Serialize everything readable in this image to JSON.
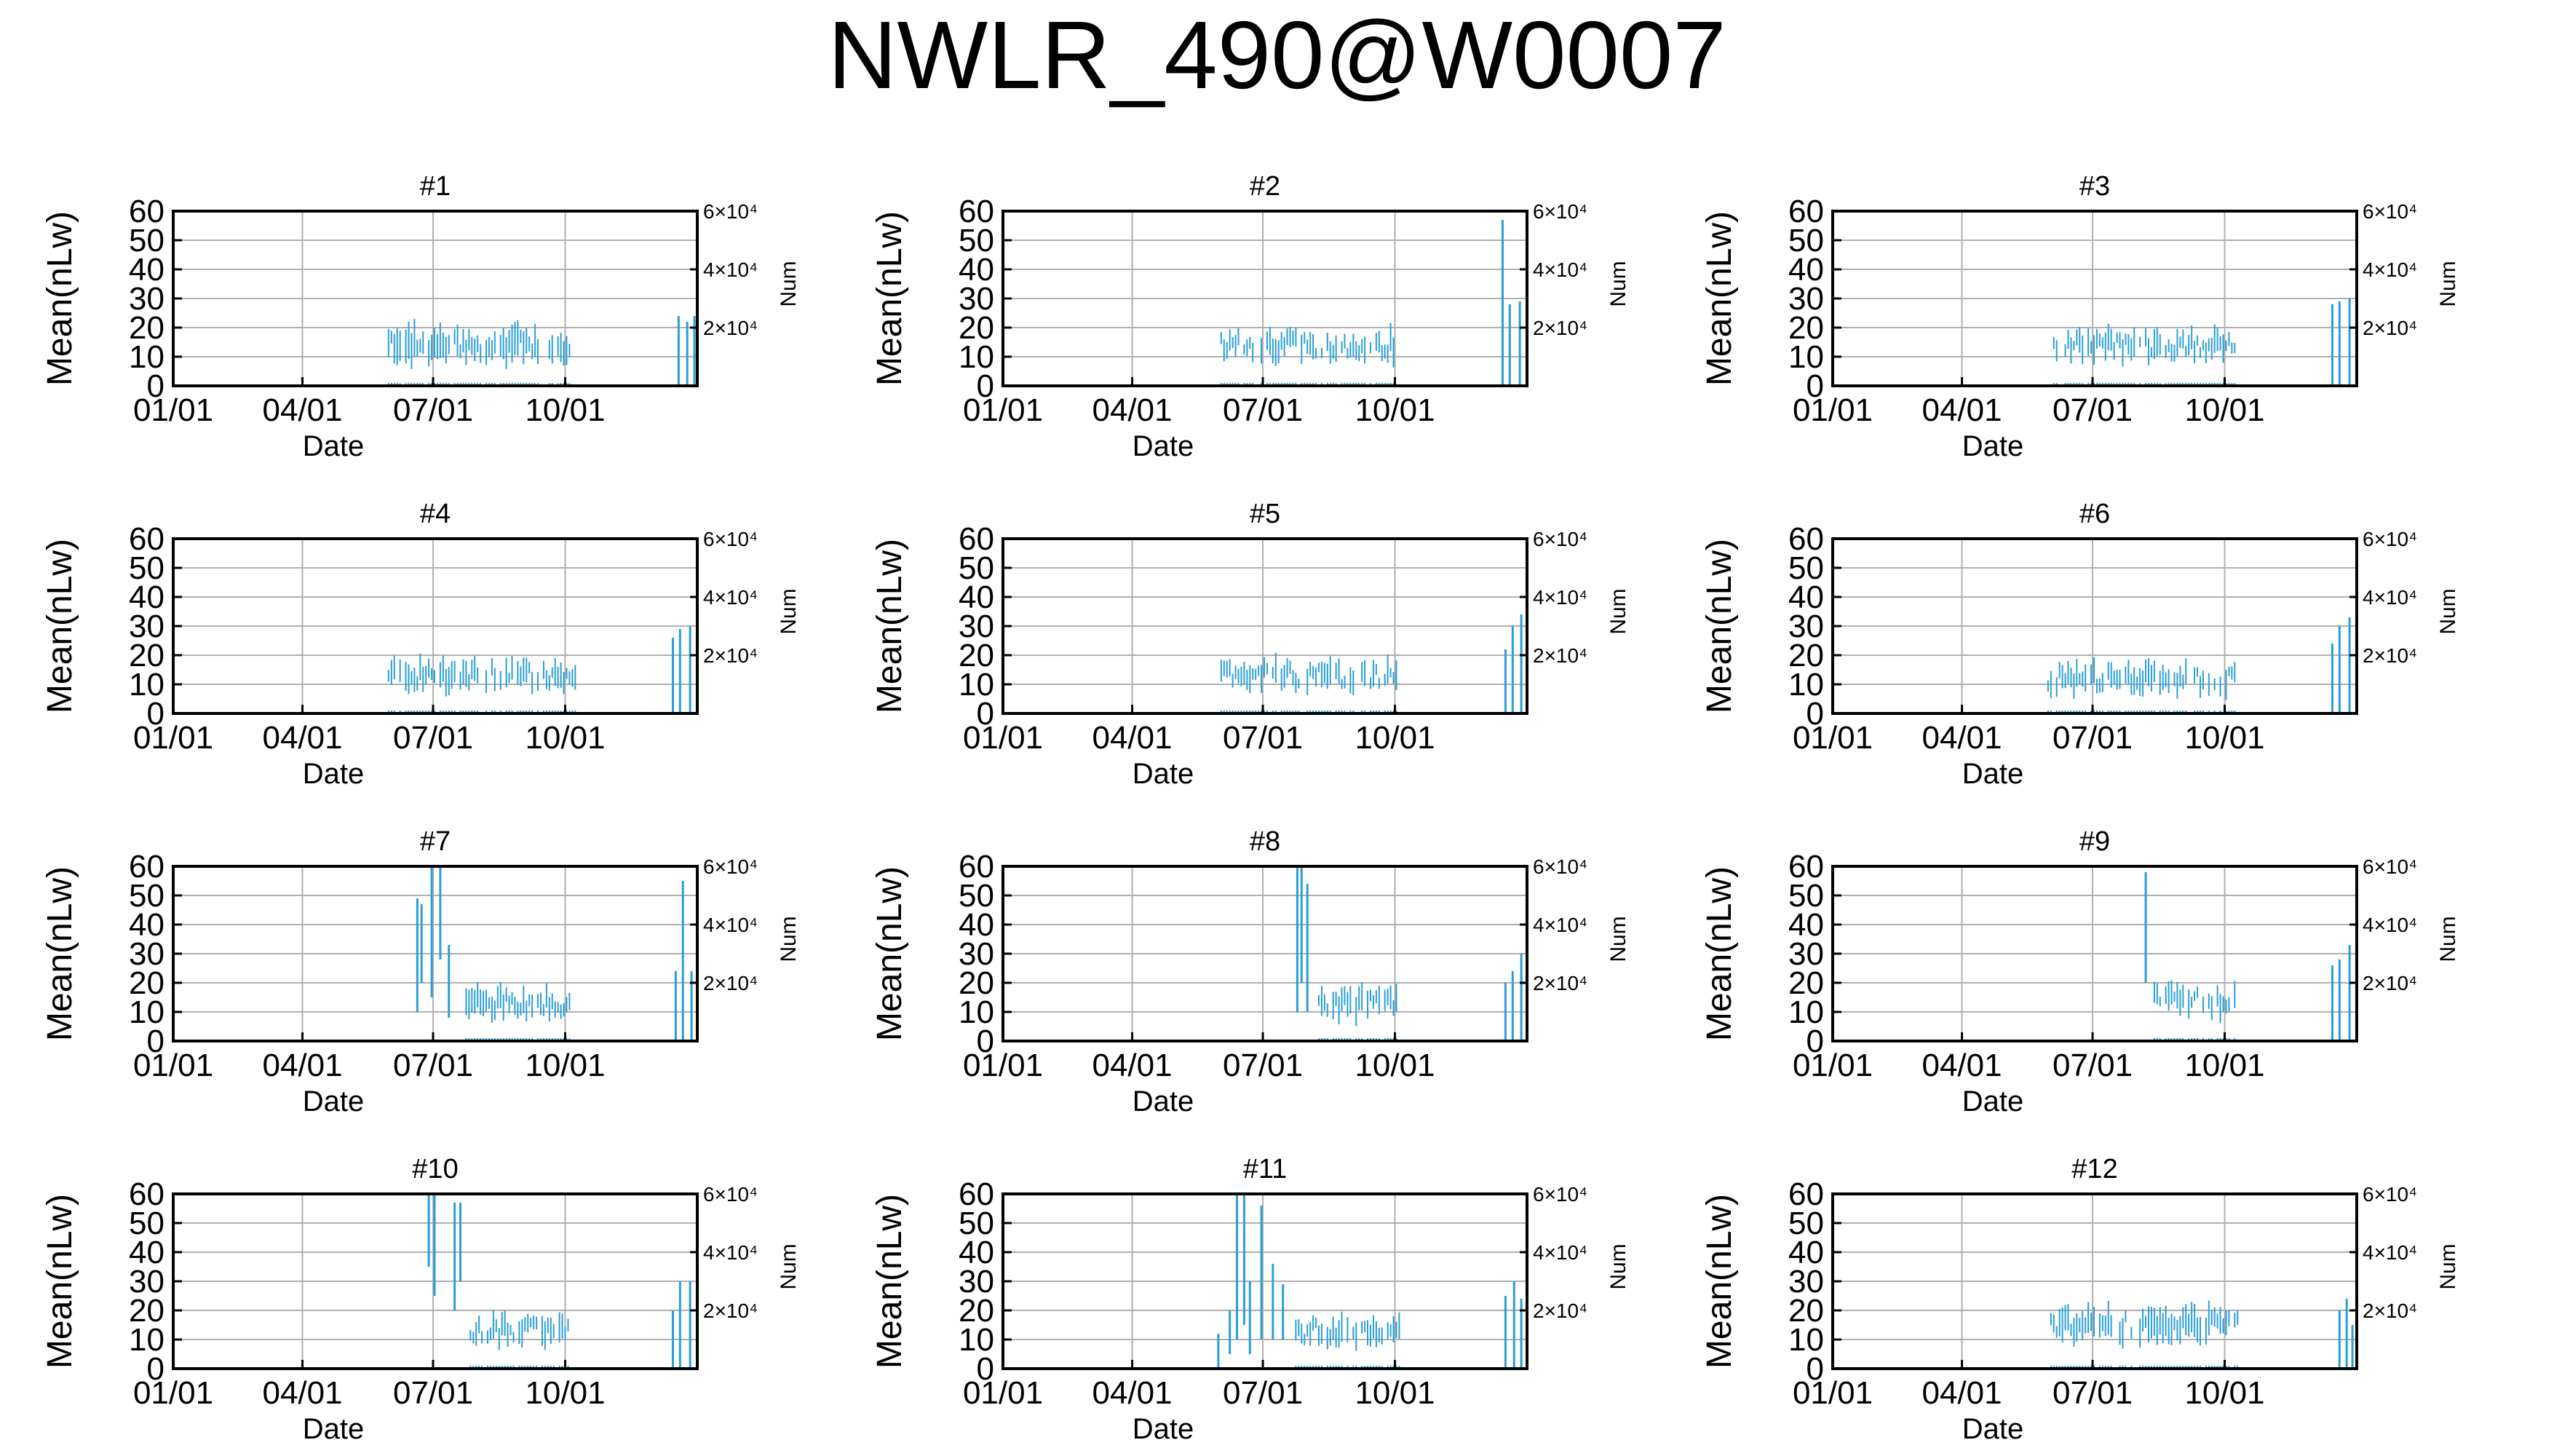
{
  "figure": {
    "title": "NWLR_490@W0007"
  },
  "colors": {
    "series": "#2a9fd6",
    "grid": "#b0b0b0",
    "axes": "#000000"
  },
  "chart_data": [
    {
      "type": "bar",
      "title": "#1",
      "xlabel": "Date",
      "ylabel": "Mean(nLw)",
      "y2label": "Num",
      "ylim": [
        0,
        60
      ],
      "yticks": [
        "0",
        "10",
        "20",
        "30",
        "40",
        "50",
        "60"
      ],
      "xticks": [
        "01/01",
        "04/01",
        "07/01",
        "10/01"
      ],
      "y2ticks": [
        "2×10⁴",
        "4×10⁴",
        "6×10⁴"
      ],
      "grid": true,
      "series": [
        {
          "x_range": [
            148,
            277
          ],
          "y_center": 14,
          "spread": 5,
          "spikes": [
            {
              "x": 352,
              "y": [
                0,
                24
              ]
            },
            {
              "x": 358,
              "y": [
                0,
                22
              ]
            },
            {
              "x": 363,
              "y": [
                0,
                24
              ]
            }
          ]
        }
      ]
    },
    {
      "type": "bar",
      "title": "#2",
      "xlabel": "Date",
      "ylabel": "Mean(nLw)",
      "y2label": "Num",
      "ylim": [
        0,
        60
      ],
      "yticks": [
        "0",
        "10",
        "20",
        "30",
        "40",
        "50",
        "60"
      ],
      "xticks": [
        "01/01",
        "04/01",
        "07/01",
        "10/01"
      ],
      "y2ticks": [
        "2×10⁴",
        "4×10⁴",
        "6×10⁴"
      ],
      "grid": true,
      "series": [
        {
          "x_range": [
            150,
            277
          ],
          "y_center": 14,
          "spread": 4,
          "spikes": [
            {
              "x": 348,
              "y": [
                0,
                57
              ]
            },
            {
              "x": 353,
              "y": [
                0,
                28
              ]
            },
            {
              "x": 360,
              "y": [
                0,
                29
              ]
            }
          ]
        }
      ]
    },
    {
      "type": "bar",
      "title": "#3",
      "xlabel": "Date",
      "ylabel": "Mean(nLw)",
      "y2label": "Num",
      "ylim": [
        0,
        60
      ],
      "yticks": [
        "0",
        "10",
        "20",
        "30",
        "40",
        "50",
        "60"
      ],
      "xticks": [
        "01/01",
        "04/01",
        "07/01",
        "10/01"
      ],
      "y2ticks": [
        "2×10⁴",
        "4×10⁴",
        "6×10⁴"
      ],
      "grid": true,
      "series": [
        {
          "x_range": [
            150,
            280
          ],
          "y_center": 14,
          "spread": 4,
          "spikes": [
            {
              "x": 348,
              "y": [
                0,
                28
              ]
            },
            {
              "x": 353,
              "y": [
                0,
                29
              ]
            },
            {
              "x": 360,
              "y": [
                0,
                30
              ]
            }
          ]
        }
      ]
    },
    {
      "type": "bar",
      "title": "#4",
      "xlabel": "Date",
      "ylabel": "Mean(nLw)",
      "y2label": "Num",
      "ylim": [
        0,
        60
      ],
      "yticks": [
        "0",
        "10",
        "20",
        "30",
        "40",
        "50",
        "60"
      ],
      "xticks": [
        "01/01",
        "04/01",
        "07/01",
        "10/01"
      ],
      "y2ticks": [
        "2×10⁴",
        "4×10⁴",
        "6×10⁴"
      ],
      "grid": true,
      "series": [
        {
          "x_range": [
            148,
            280
          ],
          "y_center": 13,
          "spread": 4,
          "spikes": [
            {
              "x": 348,
              "y": [
                0,
                26
              ]
            },
            {
              "x": 353,
              "y": [
                0,
                29
              ]
            },
            {
              "x": 360,
              "y": [
                0,
                30
              ]
            }
          ]
        }
      ]
    },
    {
      "type": "bar",
      "title": "#5",
      "xlabel": "Date",
      "ylabel": "Mean(nLw)",
      "y2label": "Num",
      "ylim": [
        0,
        60
      ],
      "yticks": [
        "0",
        "10",
        "20",
        "30",
        "40",
        "50",
        "60"
      ],
      "xticks": [
        "01/01",
        "04/01",
        "07/01",
        "10/01"
      ],
      "y2ticks": [
        "2×10⁴",
        "4×10⁴",
        "6×10⁴"
      ],
      "grid": true,
      "series": [
        {
          "x_range": [
            150,
            277
          ],
          "y_center": 13,
          "spread": 4,
          "spikes": [
            {
              "x": 350,
              "y": [
                0,
                22
              ]
            },
            {
              "x": 355,
              "y": [
                0,
                30
              ]
            },
            {
              "x": 361,
              "y": [
                0,
                34
              ]
            }
          ]
        }
      ]
    },
    {
      "type": "bar",
      "title": "#6",
      "xlabel": "Date",
      "ylabel": "Mean(nLw)",
      "y2label": "Num",
      "ylim": [
        0,
        60
      ],
      "yticks": [
        "0",
        "10",
        "20",
        "30",
        "40",
        "50",
        "60"
      ],
      "xticks": [
        "01/01",
        "04/01",
        "07/01",
        "10/01"
      ],
      "y2ticks": [
        "2×10⁴",
        "4×10⁴",
        "6×10⁴"
      ],
      "grid": true,
      "series": [
        {
          "x_range": [
            148,
            280
          ],
          "y_center": 12,
          "spread": 4,
          "spikes": [
            {
              "x": 348,
              "y": [
                0,
                24
              ]
            },
            {
              "x": 353,
              "y": [
                0,
                30
              ]
            },
            {
              "x": 360,
              "y": [
                0,
                33
              ]
            }
          ]
        }
      ]
    },
    {
      "type": "bar",
      "title": "#7",
      "xlabel": "Date",
      "ylabel": "Mean(nLw)",
      "y2label": "Num",
      "ylim": [
        0,
        60
      ],
      "yticks": [
        "0",
        "10",
        "20",
        "30",
        "40",
        "50",
        "60"
      ],
      "xticks": [
        "01/01",
        "04/01",
        "07/01",
        "10/01"
      ],
      "y2ticks": [
        "2×10⁴",
        "4×10⁴",
        "6×10⁴"
      ],
      "grid": true,
      "series": [
        {
          "x_range": [
            200,
            277
          ],
          "y_center": 13,
          "spread": 4,
          "spikes": [
            {
              "x": 170,
              "y": [
                10,
                49
              ]
            },
            {
              "x": 173,
              "y": [
                20,
                47
              ]
            },
            {
              "x": 180,
              "y": [
                15,
                60
              ]
            },
            {
              "x": 186,
              "y": [
                28,
                60
              ]
            },
            {
              "x": 192,
              "y": [
                8,
                33
              ]
            },
            {
              "x": 350,
              "y": [
                0,
                24
              ]
            },
            {
              "x": 355,
              "y": [
                0,
                55
              ]
            },
            {
              "x": 361,
              "y": [
                0,
                24
              ]
            }
          ]
        }
      ]
    },
    {
      "type": "bar",
      "title": "#8",
      "xlabel": "Date",
      "ylabel": "Mean(nLw)",
      "y2label": "Num",
      "ylim": [
        0,
        60
      ],
      "yticks": [
        "0",
        "10",
        "20",
        "30",
        "40",
        "50",
        "60"
      ],
      "xticks": [
        "01/01",
        "04/01",
        "07/01",
        "10/01"
      ],
      "y2ticks": [
        "2×10⁴",
        "4×10⁴",
        "6×10⁴"
      ],
      "grid": true,
      "series": [
        {
          "x_range": [
            218,
            277
          ],
          "y_center": 13,
          "spread": 4,
          "spikes": [
            {
              "x": 205,
              "y": [
                10,
                60
              ]
            },
            {
              "x": 208,
              "y": [
                20,
                60
              ]
            },
            {
              "x": 212,
              "y": [
                10,
                54
              ]
            },
            {
              "x": 350,
              "y": [
                0,
                20
              ]
            },
            {
              "x": 355,
              "y": [
                0,
                24
              ]
            },
            {
              "x": 361,
              "y": [
                0,
                30
              ]
            }
          ]
        }
      ]
    },
    {
      "type": "bar",
      "title": "#9",
      "xlabel": "Date",
      "ylabel": "Mean(nLw)",
      "y2label": "Num",
      "ylim": [
        0,
        60
      ],
      "yticks": [
        "0",
        "10",
        "20",
        "30",
        "40",
        "50",
        "60"
      ],
      "xticks": [
        "01/01",
        "04/01",
        "07/01",
        "10/01"
      ],
      "y2ticks": [
        "2×10⁴",
        "4×10⁴",
        "6×10⁴"
      ],
      "grid": true,
      "series": [
        {
          "x_range": [
            222,
            280
          ],
          "y_center": 14,
          "spread": 4,
          "spikes": [
            {
              "x": 218,
              "y": [
                20,
                58
              ]
            },
            {
              "x": 348,
              "y": [
                0,
                26
              ]
            },
            {
              "x": 353,
              "y": [
                0,
                28
              ]
            },
            {
              "x": 360,
              "y": [
                0,
                33
              ]
            }
          ]
        }
      ]
    },
    {
      "type": "bar",
      "title": "#10",
      "xlabel": "Date",
      "ylabel": "Mean(nLw)",
      "y2label": "Num",
      "ylim": [
        0,
        60
      ],
      "yticks": [
        "0",
        "10",
        "20",
        "30",
        "40",
        "50",
        "60"
      ],
      "xticks": [
        "01/01",
        "04/01",
        "07/01",
        "10/01"
      ],
      "y2ticks": [
        "2×10⁴",
        "4×10⁴",
        "6×10⁴"
      ],
      "grid": true,
      "series": [
        {
          "x_range": [
            205,
            275
          ],
          "y_center": 13,
          "spread": 4,
          "spikes": [
            {
              "x": 178,
              "y": [
                35,
                60
              ]
            },
            {
              "x": 182,
              "y": [
                25,
                60
              ]
            },
            {
              "x": 196,
              "y": [
                20,
                57
              ]
            },
            {
              "x": 200,
              "y": [
                30,
                57
              ]
            },
            {
              "x": 348,
              "y": [
                0,
                20
              ]
            },
            {
              "x": 353,
              "y": [
                0,
                30
              ]
            },
            {
              "x": 360,
              "y": [
                0,
                30
              ]
            }
          ]
        }
      ]
    },
    {
      "type": "bar",
      "title": "#11",
      "xlabel": "Date",
      "ylabel": "Mean(nLw)",
      "y2label": "Num",
      "ylim": [
        0,
        60
      ],
      "yticks": [
        "0",
        "10",
        "20",
        "30",
        "40",
        "50",
        "60"
      ],
      "xticks": [
        "01/01",
        "04/01",
        "07/01",
        "10/01"
      ],
      "y2ticks": [
        "2×10⁴",
        "4×10⁴",
        "6×10⁴"
      ],
      "grid": true,
      "series": [
        {
          "x_range": [
            200,
            277
          ],
          "y_center": 13,
          "spread": 4,
          "spikes": [
            {
              "x": 150,
              "y": [
                0,
                12
              ]
            },
            {
              "x": 158,
              "y": [
                5,
                20
              ]
            },
            {
              "x": 163,
              "y": [
                10,
                60
              ]
            },
            {
              "x": 168,
              "y": [
                15,
                60
              ]
            },
            {
              "x": 172,
              "y": [
                5,
                30
              ]
            },
            {
              "x": 180,
              "y": [
                10,
                56
              ]
            },
            {
              "x": 188,
              "y": [
                10,
                36
              ]
            },
            {
              "x": 195,
              "y": [
                10,
                29
              ]
            },
            {
              "x": 350,
              "y": [
                0,
                25
              ]
            },
            {
              "x": 356,
              "y": [
                0,
                30
              ]
            },
            {
              "x": 361,
              "y": [
                0,
                24
              ]
            }
          ]
        }
      ]
    },
    {
      "type": "bar",
      "title": "#12",
      "xlabel": "Date",
      "ylabel": "Mean(nLw)",
      "y2label": "Num",
      "ylim": [
        0,
        60
      ],
      "yticks": [
        "0",
        "10",
        "20",
        "30",
        "40",
        "50",
        "60"
      ],
      "xticks": [
        "01/01",
        "04/01",
        "07/01",
        "10/01"
      ],
      "y2ticks": [
        "2×10⁴",
        "4×10⁴",
        "6×10⁴"
      ],
      "grid": true,
      "series": [
        {
          "x_range": [
            150,
            282
          ],
          "y_center": 15,
          "spread": 5,
          "spikes": [
            {
              "x": 353,
              "y": [
                0,
                20
              ]
            },
            {
              "x": 358,
              "y": [
                0,
                24
              ]
            },
            {
              "x": 362,
              "y": [
                0,
                15
              ]
            }
          ]
        }
      ]
    }
  ]
}
